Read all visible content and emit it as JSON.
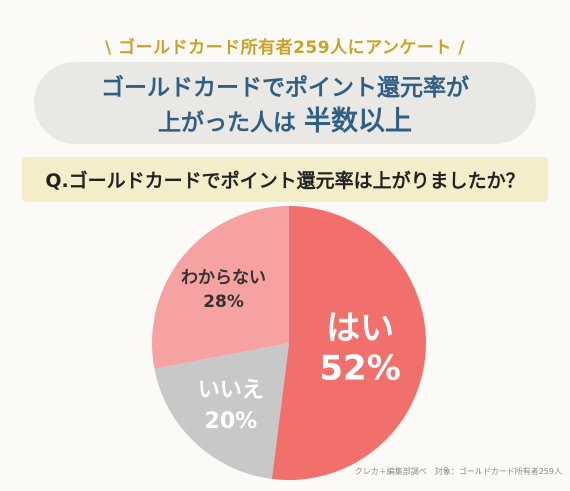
{
  "header": {
    "survey_tag": "\\ ゴールドカード所有者259人にアンケート /",
    "headline_line1": "ゴールドカードでポイント還元率が",
    "headline_line2_prefix": "上がった人は ",
    "headline_line2_emphasis": "半数以上"
  },
  "question": "Q.ゴールドカードでポイント還元率は上がりましたか？",
  "source_note": "クレカ＋編集部調べ　対象：ゴールドカード所有者259人",
  "colors": {
    "tag": "#c9a227",
    "headline": "#2f5f85",
    "yes": "#f2706b",
    "no": "#c8c8c8",
    "unknown": "#f6a2a3"
  },
  "chart_data": {
    "type": "pie",
    "title": "",
    "slices": [
      {
        "label": "はい",
        "value": 52,
        "display": "52%",
        "color": "#f2706b"
      },
      {
        "label": "いいえ",
        "value": 20,
        "display": "20%",
        "color": "#c8c8c8"
      },
      {
        "label": "わからない",
        "value": 28,
        "display": "28%",
        "color": "#f6a2a3"
      }
    ]
  }
}
